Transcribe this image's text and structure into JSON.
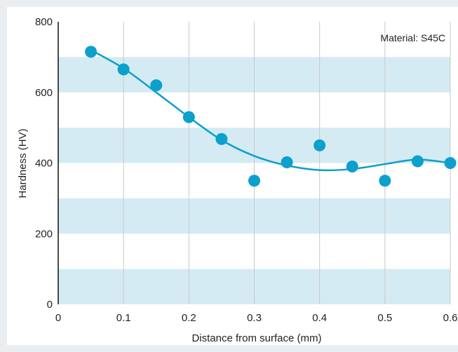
{
  "chart_data": {
    "type": "scatter",
    "title": "",
    "xlabel": "Distance from surface (mm)",
    "ylabel": "Hardness (HV)",
    "xlim": [
      0,
      0.6
    ],
    "ylim": [
      0,
      800
    ],
    "xticks": [
      "0",
      "0.1",
      "0.2",
      "0.3",
      "0.4",
      "0.5",
      "0.6"
    ],
    "yticks": [
      "0",
      "200",
      "400",
      "600",
      "800"
    ],
    "annotation": "Material: S45C",
    "points": [
      {
        "x": 0.05,
        "y": 715
      },
      {
        "x": 0.1,
        "y": 665
      },
      {
        "x": 0.15,
        "y": 620
      },
      {
        "x": 0.2,
        "y": 530
      },
      {
        "x": 0.25,
        "y": 468
      },
      {
        "x": 0.3,
        "y": 350
      },
      {
        "x": 0.35,
        "y": 402
      },
      {
        "x": 0.4,
        "y": 450
      },
      {
        "x": 0.45,
        "y": 390
      },
      {
        "x": 0.5,
        "y": 350
      },
      {
        "x": 0.55,
        "y": 405
      },
      {
        "x": 0.6,
        "y": 400
      }
    ],
    "trend_line": [
      {
        "x": 0.05,
        "y": 720
      },
      {
        "x": 0.1,
        "y": 668
      },
      {
        "x": 0.15,
        "y": 600
      },
      {
        "x": 0.2,
        "y": 530
      },
      {
        "x": 0.25,
        "y": 465
      },
      {
        "x": 0.3,
        "y": 420
      },
      {
        "x": 0.35,
        "y": 393
      },
      {
        "x": 0.4,
        "y": 380
      },
      {
        "x": 0.45,
        "y": 383
      },
      {
        "x": 0.5,
        "y": 397
      },
      {
        "x": 0.55,
        "y": 410
      },
      {
        "x": 0.6,
        "y": 400
      }
    ],
    "colors": {
      "band": "#d4ebf3",
      "point": "#0ca0cc",
      "line": "#0ca0cc",
      "grid": "#c8c8c8"
    },
    "grid": true
  }
}
